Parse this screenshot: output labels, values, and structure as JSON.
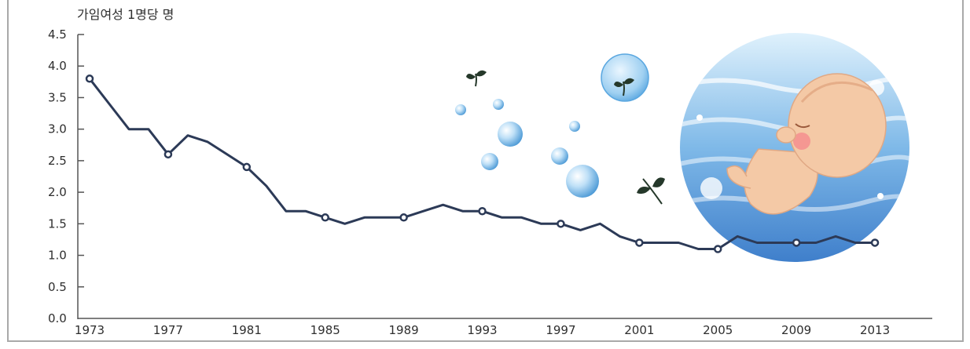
{
  "chart_data": {
    "type": "line",
    "title": "",
    "ylabel": "가임여성 1명당 명",
    "xlabel": "",
    "xlim": [
      1973,
      2015
    ],
    "ylim": [
      0.0,
      4.5
    ],
    "y_ticks": [
      0.0,
      0.5,
      1.0,
      1.5,
      2.0,
      2.5,
      3.0,
      3.5,
      4.0,
      4.5
    ],
    "y_tick_labels": [
      "0.0",
      "0.5",
      "1.0",
      "1.5",
      "2.0",
      "2.5",
      "3.0",
      "3.5",
      "4.0",
      "4.5"
    ],
    "x_tick_labels": [
      "1973",
      "1977",
      "1981",
      "1985",
      "1989",
      "1993",
      "1997",
      "2001",
      "2005",
      "2009",
      "2013"
    ],
    "grid": false,
    "series": [
      {
        "color": "#2c3a57",
        "x": [
          1973,
          1974,
          1975,
          1976,
          1977,
          1978,
          1979,
          1980,
          1981,
          1982,
          1983,
          1984,
          1985,
          1986,
          1987,
          1988,
          1989,
          1990,
          1991,
          1992,
          1993,
          1994,
          1995,
          1996,
          1997,
          1998,
          1999,
          2000,
          2001,
          2002,
          2003,
          2004,
          2005,
          2006,
          2007,
          2008,
          2009,
          2010,
          2011,
          2012,
          2013
        ],
        "values": [
          3.8,
          3.4,
          3.0,
          3.0,
          2.6,
          2.9,
          2.8,
          2.6,
          2.4,
          2.1,
          1.7,
          1.7,
          1.6,
          1.5,
          1.6,
          1.6,
          1.6,
          1.7,
          1.8,
          1.7,
          1.7,
          1.6,
          1.6,
          1.5,
          1.5,
          1.4,
          1.5,
          1.3,
          1.2,
          1.2,
          1.2,
          1.1,
          1.1,
          1.3,
          1.2,
          1.2,
          1.2,
          1.2,
          1.3,
          1.2,
          1.2
        ],
        "marked_years": [
          1973,
          1977,
          1981,
          1985,
          1989,
          1993,
          1997,
          2001,
          2005,
          2009,
          2013
        ]
      }
    ]
  },
  "style": {
    "line_color": "#2c3a57",
    "axis_color": "#555555",
    "sprout_color": "#25382a",
    "bubble_color": "#5aa7e0",
    "baby_skin": "#f4c9a6"
  }
}
